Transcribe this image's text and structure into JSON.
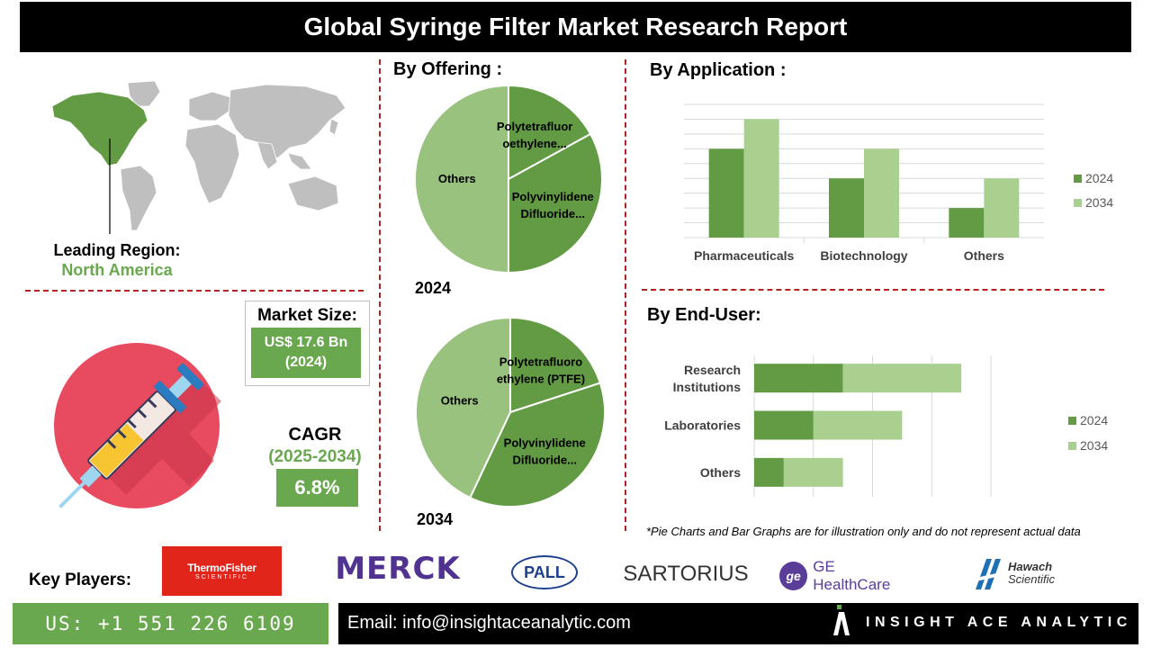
{
  "title": "Global Syringe Filter Market Research Report",
  "region": {
    "label": "Leading Region:",
    "value": "North America"
  },
  "market_size": {
    "label": "Market Size:",
    "value_line1": "US$ 17.6 Bn",
    "value_line2": "(2024)"
  },
  "cagr": {
    "label": "CAGR",
    "period": "(2025-2034)",
    "value": "6.8%"
  },
  "colors": {
    "dark_green": "#629b44",
    "light_green": "#9ac27f",
    "lighter_green": "#a9d08e",
    "divider": "#b22222"
  },
  "chart_data": [
    {
      "type": "pie",
      "title": "By Offering :",
      "caption": "2024",
      "slices": [
        {
          "label_line1": "Polytetrafluor",
          "label_line2": "oethylene...",
          "value": 17
        },
        {
          "label_line1": "Polyvinylidene",
          "label_line2": "Difluoride...",
          "value": 33
        },
        {
          "label_line1": "Others",
          "label_line2": "",
          "value": 50
        }
      ]
    },
    {
      "type": "pie",
      "caption": "2034",
      "slices": [
        {
          "label_line1": "Polytetrafluoro",
          "label_line2": "ethylene (PTFE)",
          "value": 20
        },
        {
          "label_line1": "Polyvinylidene",
          "label_line2": "Difluoride...",
          "value": 37
        },
        {
          "label_line1": "Others",
          "label_line2": "",
          "value": 43
        }
      ]
    },
    {
      "type": "bar",
      "title": "By Application :",
      "categories": [
        "Pharmaceuticals",
        "Biotechnology",
        "Others"
      ],
      "series": [
        {
          "name": "2024",
          "values": [
            3,
            2,
            1
          ]
        },
        {
          "name": "2034",
          "values": [
            4,
            3,
            2
          ]
        }
      ],
      "ylim": [
        0,
        4.5
      ],
      "grid": true,
      "legend": "right"
    },
    {
      "type": "bar",
      "orientation": "horizontal",
      "stacked": true,
      "title": "By End-User:",
      "categories": [
        "Research Institutions",
        "Laboratories",
        "Others"
      ],
      "category_lines": [
        [
          "Research",
          "Institutions"
        ],
        [
          "Laboratories"
        ],
        [
          "Others"
        ]
      ],
      "series": [
        {
          "name": "2024",
          "values": [
            3,
            2,
            1
          ]
        },
        {
          "name": "2034",
          "values": [
            4,
            3,
            2
          ]
        }
      ],
      "xlim": [
        0,
        8
      ],
      "grid": true,
      "legend": "right"
    }
  ],
  "disclaimer": "*Pie Charts and Bar Graphs are for illustration only and do not represent actual data",
  "key_players": {
    "label": "Key Players:",
    "thermo_line1": "ThermoFisher",
    "thermo_line2": "SCIENTIFIC",
    "merck": "MERCK",
    "pall": "PALL",
    "sartorius": "SARTORIUS",
    "ge_mark": "ge",
    "ge": "GE HealthCare",
    "hawach_line1": "Hawach",
    "hawach_line2": "Scientific"
  },
  "footer": {
    "phone": "US: +1 551 226 6109",
    "email": "Email: info@insightaceanalytic.com",
    "brand": "INSIGHT ACE ANALYTIC"
  }
}
